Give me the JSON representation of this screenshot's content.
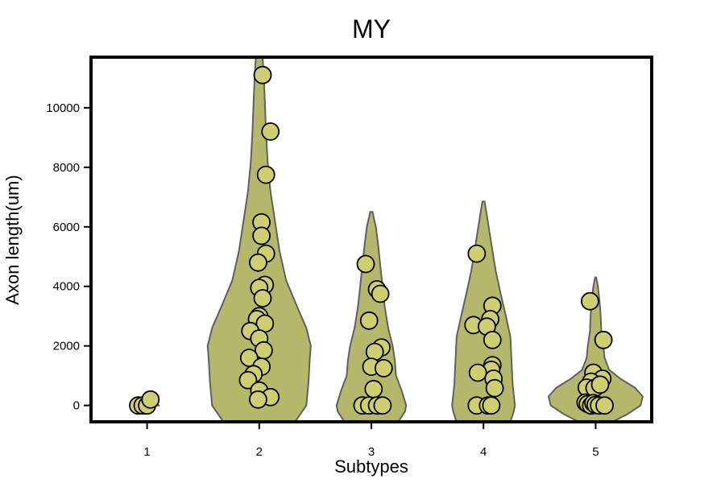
{
  "chart_data": {
    "type": "violin",
    "title": "MY",
    "xlabel": "Subtypes",
    "ylabel": "Axon length(um)",
    "categories": [
      "1",
      "2",
      "3",
      "4",
      "5"
    ],
    "yticks": [
      0,
      2000,
      4000,
      6000,
      8000,
      10000
    ],
    "ytick_labels": [
      "0",
      "2000",
      "4000",
      "6000",
      "8000",
      "10000"
    ],
    "ylim": [
      -550,
      11700
    ],
    "grid": false,
    "legend": "none",
    "colors": {
      "violin_fill": "#b5b86a",
      "point_fill": "#cfcf72",
      "violin_edge": "#606060",
      "point_edge": "#000000"
    },
    "violins": [
      {
        "category": "1",
        "shape": [
          [
            -30,
            0
          ],
          [
            0,
            0.11
          ],
          [
            30,
            0.09
          ],
          [
            80,
            0.03
          ],
          [
            180,
            0
          ]
        ]
      },
      {
        "category": "2",
        "shape": [
          [
            -550,
            0.32
          ],
          [
            0,
            0.42
          ],
          [
            800,
            0.44
          ],
          [
            1500,
            0.45
          ],
          [
            2000,
            0.46
          ],
          [
            2600,
            0.42
          ],
          [
            3300,
            0.34
          ],
          [
            4200,
            0.24
          ],
          [
            5200,
            0.18
          ],
          [
            6200,
            0.14
          ],
          [
            7200,
            0.1
          ],
          [
            8200,
            0.075
          ],
          [
            9200,
            0.06
          ],
          [
            10200,
            0.05
          ],
          [
            11100,
            0.04
          ],
          [
            11700,
            0.03
          ]
        ]
      },
      {
        "category": "3",
        "shape": [
          [
            -550,
            0.24
          ],
          [
            -200,
            0.3
          ],
          [
            0,
            0.31
          ],
          [
            500,
            0.27
          ],
          [
            1000,
            0.22
          ],
          [
            1500,
            0.21
          ],
          [
            2000,
            0.19
          ],
          [
            2600,
            0.15
          ],
          [
            3300,
            0.12
          ],
          [
            4000,
            0.1
          ],
          [
            4700,
            0.08
          ],
          [
            5400,
            0.06
          ],
          [
            6000,
            0.04
          ],
          [
            6500,
            0.01
          ]
        ]
      },
      {
        "category": "4",
        "shape": [
          [
            -550,
            0.24
          ],
          [
            -200,
            0.27
          ],
          [
            0,
            0.28
          ],
          [
            700,
            0.26
          ],
          [
            1500,
            0.25
          ],
          [
            2300,
            0.24
          ],
          [
            3000,
            0.2
          ],
          [
            3800,
            0.15
          ],
          [
            4500,
            0.11
          ],
          [
            5200,
            0.08
          ],
          [
            5900,
            0.05
          ],
          [
            6500,
            0.025
          ],
          [
            6850,
            0.01
          ]
        ]
      },
      {
        "category": "5",
        "shape": [
          [
            -550,
            0.15
          ],
          [
            -300,
            0.28
          ],
          [
            0,
            0.4
          ],
          [
            300,
            0.42
          ],
          [
            600,
            0.35
          ],
          [
            900,
            0.22
          ],
          [
            1200,
            0.12
          ],
          [
            1600,
            0.08
          ],
          [
            2000,
            0.07
          ],
          [
            2500,
            0.05
          ],
          [
            3000,
            0.045
          ],
          [
            3500,
            0.035
          ],
          [
            4000,
            0.02
          ],
          [
            4300,
            0.005
          ]
        ]
      }
    ],
    "points": [
      {
        "category": "1",
        "x": -0.08,
        "y": 0
      },
      {
        "category": "1",
        "x": -0.04,
        "y": 0
      },
      {
        "category": "1",
        "x": 0.0,
        "y": 0
      },
      {
        "category": "1",
        "x": 0.03,
        "y": 200
      },
      {
        "category": "2",
        "x": 0.03,
        "y": 11100
      },
      {
        "category": "2",
        "x": 0.1,
        "y": 9200
      },
      {
        "category": "2",
        "x": 0.06,
        "y": 7750
      },
      {
        "category": "2",
        "x": 0.02,
        "y": 6150
      },
      {
        "category": "2",
        "x": 0.02,
        "y": 5700
      },
      {
        "category": "2",
        "x": 0.06,
        "y": 5100
      },
      {
        "category": "2",
        "x": -0.01,
        "y": 4800
      },
      {
        "category": "2",
        "x": 0.05,
        "y": 4050
      },
      {
        "category": "2",
        "x": 0.0,
        "y": 3950
      },
      {
        "category": "2",
        "x": 0.03,
        "y": 3600
      },
      {
        "category": "2",
        "x": 0.0,
        "y": 3000
      },
      {
        "category": "2",
        "x": -0.02,
        "y": 2900
      },
      {
        "category": "2",
        "x": 0.05,
        "y": 2750
      },
      {
        "category": "2",
        "x": -0.08,
        "y": 2500
      },
      {
        "category": "2",
        "x": 0.0,
        "y": 2250
      },
      {
        "category": "2",
        "x": 0.04,
        "y": 1850
      },
      {
        "category": "2",
        "x": -0.09,
        "y": 1600
      },
      {
        "category": "2",
        "x": 0.02,
        "y": 1300
      },
      {
        "category": "2",
        "x": -0.05,
        "y": 1050
      },
      {
        "category": "2",
        "x": -0.1,
        "y": 850
      },
      {
        "category": "2",
        "x": 0.0,
        "y": 500
      },
      {
        "category": "2",
        "x": 0.1,
        "y": 280
      },
      {
        "category": "2",
        "x": -0.01,
        "y": 200
      },
      {
        "category": "3",
        "x": -0.05,
        "y": 4750
      },
      {
        "category": "3",
        "x": 0.05,
        "y": 3900
      },
      {
        "category": "3",
        "x": 0.08,
        "y": 3750
      },
      {
        "category": "3",
        "x": -0.02,
        "y": 2850
      },
      {
        "category": "3",
        "x": 0.09,
        "y": 1950
      },
      {
        "category": "3",
        "x": 0.03,
        "y": 1800
      },
      {
        "category": "3",
        "x": 0.0,
        "y": 1300
      },
      {
        "category": "3",
        "x": 0.11,
        "y": 1250
      },
      {
        "category": "3",
        "x": 0.02,
        "y": 550
      },
      {
        "category": "3",
        "x": -0.08,
        "y": 0
      },
      {
        "category": "3",
        "x": -0.02,
        "y": 0
      },
      {
        "category": "3",
        "x": 0.05,
        "y": 0
      },
      {
        "category": "3",
        "x": 0.1,
        "y": 0
      },
      {
        "category": "4",
        "x": -0.06,
        "y": 5100
      },
      {
        "category": "4",
        "x": 0.08,
        "y": 3350
      },
      {
        "category": "4",
        "x": 0.06,
        "y": 2900
      },
      {
        "category": "4",
        "x": -0.09,
        "y": 2700
      },
      {
        "category": "4",
        "x": 0.03,
        "y": 2650
      },
      {
        "category": "4",
        "x": 0.08,
        "y": 2200
      },
      {
        "category": "4",
        "x": 0.08,
        "y": 1350
      },
      {
        "category": "4",
        "x": 0.07,
        "y": 1200
      },
      {
        "category": "4",
        "x": -0.05,
        "y": 1100
      },
      {
        "category": "4",
        "x": 0.09,
        "y": 900
      },
      {
        "category": "4",
        "x": 0.1,
        "y": 580
      },
      {
        "category": "4",
        "x": -0.06,
        "y": 0
      },
      {
        "category": "4",
        "x": 0.04,
        "y": 0
      },
      {
        "category": "4",
        "x": 0.07,
        "y": 0
      },
      {
        "category": "5",
        "x": -0.05,
        "y": 3500
      },
      {
        "category": "5",
        "x": 0.07,
        "y": 2200
      },
      {
        "category": "5",
        "x": -0.02,
        "y": 1100
      },
      {
        "category": "5",
        "x": 0.06,
        "y": 900
      },
      {
        "category": "5",
        "x": -0.04,
        "y": 800
      },
      {
        "category": "5",
        "x": -0.08,
        "y": 600
      },
      {
        "category": "5",
        "x": -0.01,
        "y": 580
      },
      {
        "category": "5",
        "x": 0.04,
        "y": 700
      },
      {
        "category": "5",
        "x": -0.09,
        "y": 100
      },
      {
        "category": "5",
        "x": -0.07,
        "y": 50
      },
      {
        "category": "5",
        "x": -0.04,
        "y": 0
      },
      {
        "category": "5",
        "x": -0.02,
        "y": 80
      },
      {
        "category": "5",
        "x": 0.0,
        "y": 20
      },
      {
        "category": "5",
        "x": 0.03,
        "y": 0
      },
      {
        "category": "5",
        "x": 0.08,
        "y": 0
      }
    ]
  }
}
